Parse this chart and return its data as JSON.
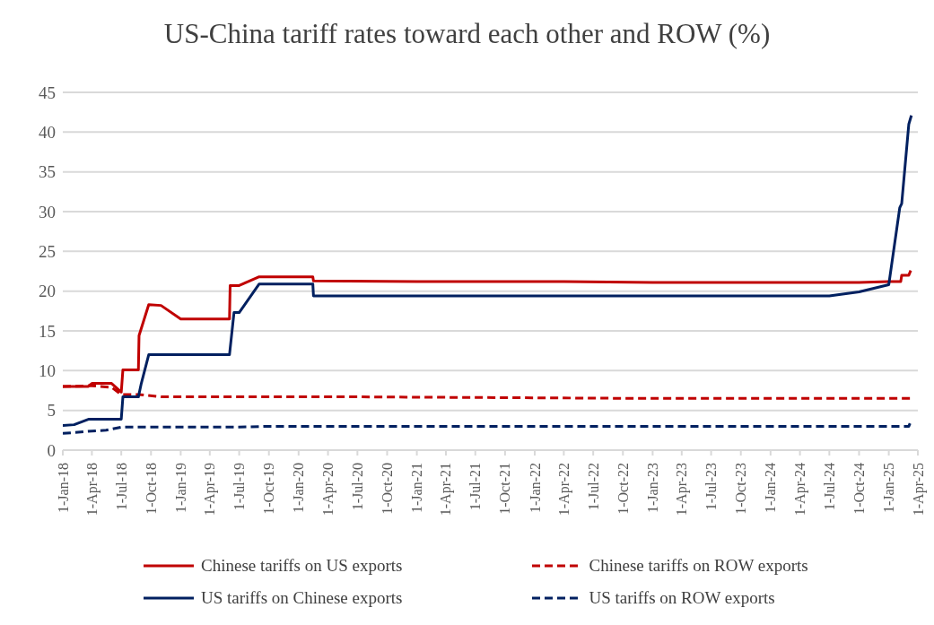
{
  "chart_data": {
    "type": "line",
    "title": "US-China tariff rates toward each other and ROW (%)",
    "xlim": [
      "2018-01-01",
      "2025-04-01"
    ],
    "xticks": [
      {
        "value": "2018-01-01",
        "label": "1-Jan-18"
      },
      {
        "value": "2018-04-01",
        "label": "1-Apr-18"
      },
      {
        "value": "2018-07-01",
        "label": "1-Jul-18"
      },
      {
        "value": "2018-10-01",
        "label": "1-Oct-18"
      },
      {
        "value": "2019-01-01",
        "label": "1-Jan-19"
      },
      {
        "value": "2019-04-01",
        "label": "1-Apr-19"
      },
      {
        "value": "2019-07-01",
        "label": "1-Jul-19"
      },
      {
        "value": "2019-10-01",
        "label": "1-Oct-19"
      },
      {
        "value": "2020-01-01",
        "label": "1-Jan-20"
      },
      {
        "value": "2020-04-01",
        "label": "1-Apr-20"
      },
      {
        "value": "2020-07-01",
        "label": "1-Jul-20"
      },
      {
        "value": "2020-10-01",
        "label": "1-Oct-20"
      },
      {
        "value": "2021-01-01",
        "label": "1-Jan-21"
      },
      {
        "value": "2021-04-01",
        "label": "1-Apr-21"
      },
      {
        "value": "2021-07-01",
        "label": "1-Jul-21"
      },
      {
        "value": "2021-10-01",
        "label": "1-Oct-21"
      },
      {
        "value": "2022-01-01",
        "label": "1-Jan-22"
      },
      {
        "value": "2022-04-01",
        "label": "1-Apr-22"
      },
      {
        "value": "2022-07-01",
        "label": "1-Jul-22"
      },
      {
        "value": "2022-10-01",
        "label": "1-Oct-22"
      },
      {
        "value": "2023-01-01",
        "label": "1-Jan-23"
      },
      {
        "value": "2023-04-01",
        "label": "1-Apr-23"
      },
      {
        "value": "2023-07-01",
        "label": "1-Jul-23"
      },
      {
        "value": "2023-10-01",
        "label": "1-Oct-23"
      },
      {
        "value": "2024-01-01",
        "label": "1-Jan-24"
      },
      {
        "value": "2024-04-01",
        "label": "1-Apr-24"
      },
      {
        "value": "2024-07-01",
        "label": "1-Jul-24"
      },
      {
        "value": "2024-10-01",
        "label": "1-Oct-24"
      },
      {
        "value": "2025-01-01",
        "label": "1-Jan-25"
      },
      {
        "value": "2025-04-01",
        "label": "1-Apr-25"
      }
    ],
    "ylim": [
      0,
      45
    ],
    "yticks": [
      0,
      5,
      10,
      15,
      20,
      25,
      30,
      35,
      40,
      45
    ],
    "grid": "y",
    "legend": "bottom",
    "marker": "none",
    "series": [
      {
        "name": "Chinese tariffs on US exports",
        "color": "#c00000",
        "line_style": "solid",
        "x": [
          "2018-01-01",
          "2018-03-20",
          "2018-04-02",
          "2018-06-01",
          "2018-07-01",
          "2018-07-06",
          "2018-08-23",
          "2018-08-25",
          "2018-09-24",
          "2018-11-01",
          "2019-01-01",
          "2019-06-01",
          "2019-06-03",
          "2019-07-01",
          "2019-09-01",
          "2020-02-14",
          "2020-02-16",
          "2021-01-01",
          "2022-04-01",
          "2023-01-01",
          "2024-10-01",
          "2025-01-01",
          "2025-02-07",
          "2025-02-10",
          "2025-03-04",
          "2025-03-10"
        ],
        "values": [
          8.0,
          8.0,
          8.4,
          8.4,
          7.3,
          10.1,
          10.1,
          14.4,
          18.3,
          18.2,
          16.5,
          16.5,
          20.7,
          20.7,
          21.8,
          21.8,
          21.3,
          21.2,
          21.2,
          21.1,
          21.1,
          21.2,
          21.2,
          22.0,
          22.0,
          22.6
        ]
      },
      {
        "name": "Chinese tariffs on ROW exports",
        "color": "#c00000",
        "line_style": "dashed",
        "x": [
          "2018-01-01",
          "2018-04-01",
          "2018-06-01",
          "2018-07-01",
          "2018-08-23",
          "2018-11-01",
          "2020-07-01",
          "2023-01-01",
          "2025-03-12"
        ],
        "values": [
          8.0,
          8.1,
          7.9,
          7.0,
          7.0,
          6.7,
          6.7,
          6.5,
          6.5
        ]
      },
      {
        "name": "US tariffs on Chinese exports",
        "color": "#002060",
        "line_style": "solid",
        "x": [
          "2018-01-01",
          "2018-02-05",
          "2018-03-23",
          "2018-07-01",
          "2018-07-06",
          "2018-08-23",
          "2018-09-01",
          "2018-09-24",
          "2019-06-01",
          "2019-06-15",
          "2019-07-01",
          "2019-09-01",
          "2020-02-14",
          "2020-02-16",
          "2024-07-01",
          "2024-10-01",
          "2025-01-01",
          "2025-02-04",
          "2025-02-10",
          "2025-03-04",
          "2025-03-12"
        ],
        "values": [
          3.1,
          3.2,
          3.9,
          3.9,
          6.7,
          6.7,
          8.4,
          12.0,
          12.0,
          17.3,
          17.3,
          20.9,
          20.9,
          19.4,
          19.4,
          19.9,
          20.8,
          30.5,
          31.0,
          41.0,
          42.1
        ]
      },
      {
        "name": "US tariffs on ROW exports",
        "color": "#002060",
        "line_style": "dashed",
        "x": [
          "2018-01-01",
          "2018-04-01",
          "2018-05-15",
          "2018-07-01",
          "2019-07-01",
          "2019-10-01",
          "2025-03-04",
          "2025-03-12"
        ],
        "values": [
          2.1,
          2.4,
          2.5,
          2.9,
          2.9,
          3.0,
          3.0,
          3.8
        ]
      }
    ]
  }
}
